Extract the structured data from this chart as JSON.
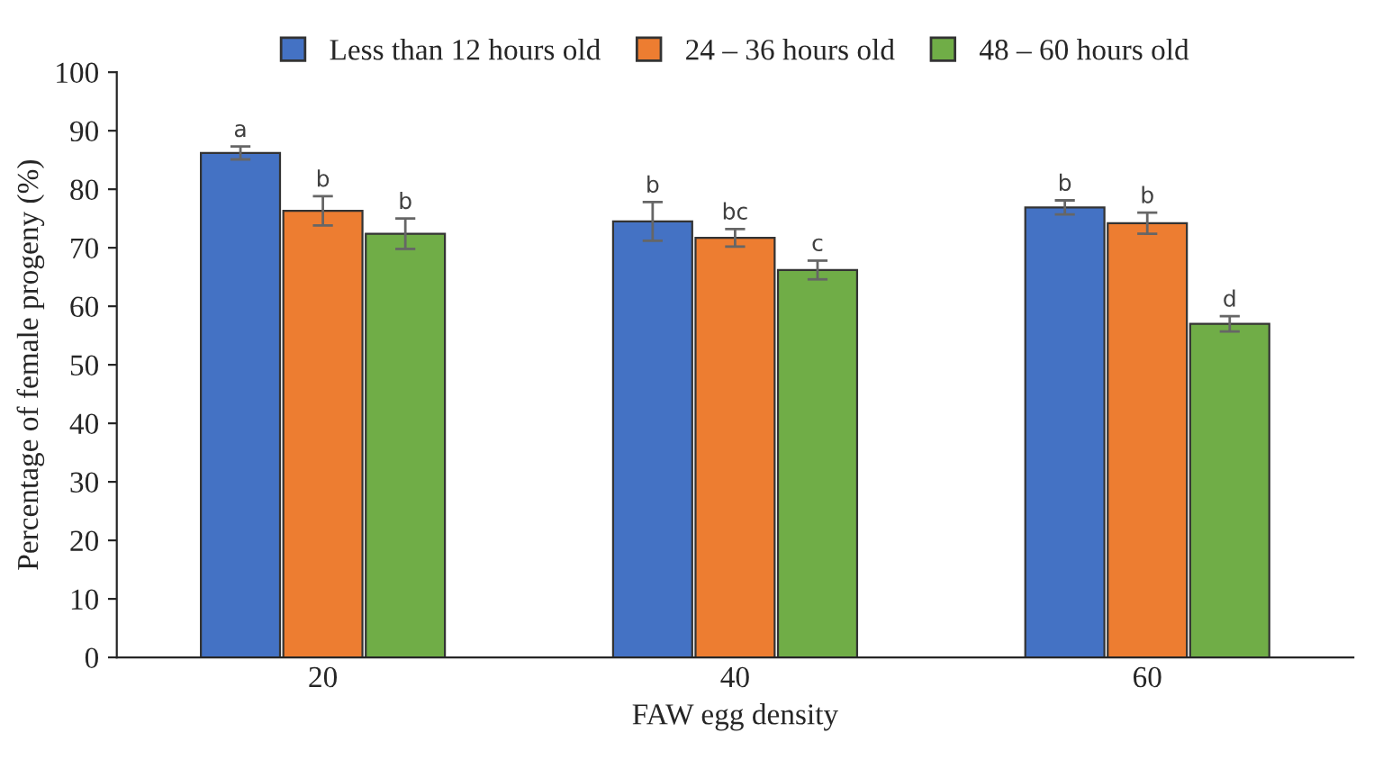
{
  "chart_data": {
    "type": "bar",
    "xlabel": "FAW egg density",
    "ylabel": "Percentage of female progeny (%)",
    "categories": [
      "20",
      "40",
      "60"
    ],
    "series": [
      {
        "name": "Less than 12 hours old",
        "color": "#4472c4",
        "values": [
          86.2,
          74.5,
          76.9
        ],
        "errors": [
          1.1,
          3.3,
          1.2
        ]
      },
      {
        "name": "24 – 36 hours old",
        "color": "#ed7d31",
        "values": [
          76.3,
          71.7,
          74.2
        ],
        "errors": [
          2.5,
          1.5,
          1.8
        ]
      },
      {
        "name": "48 – 60 hours old",
        "color": "#70ad47",
        "values": [
          72.4,
          66.2,
          57.0
        ],
        "errors": [
          2.6,
          1.6,
          1.3
        ]
      }
    ],
    "annotations": [
      "a",
      "b",
      "b",
      "b",
      "bc",
      "c",
      "b",
      "b",
      "d"
    ],
    "ylim": [
      0,
      100
    ],
    "yticks": [
      0,
      10,
      20,
      30,
      40,
      50,
      60,
      70,
      80,
      90,
      100
    ],
    "grid": false,
    "legend": "top"
  }
}
